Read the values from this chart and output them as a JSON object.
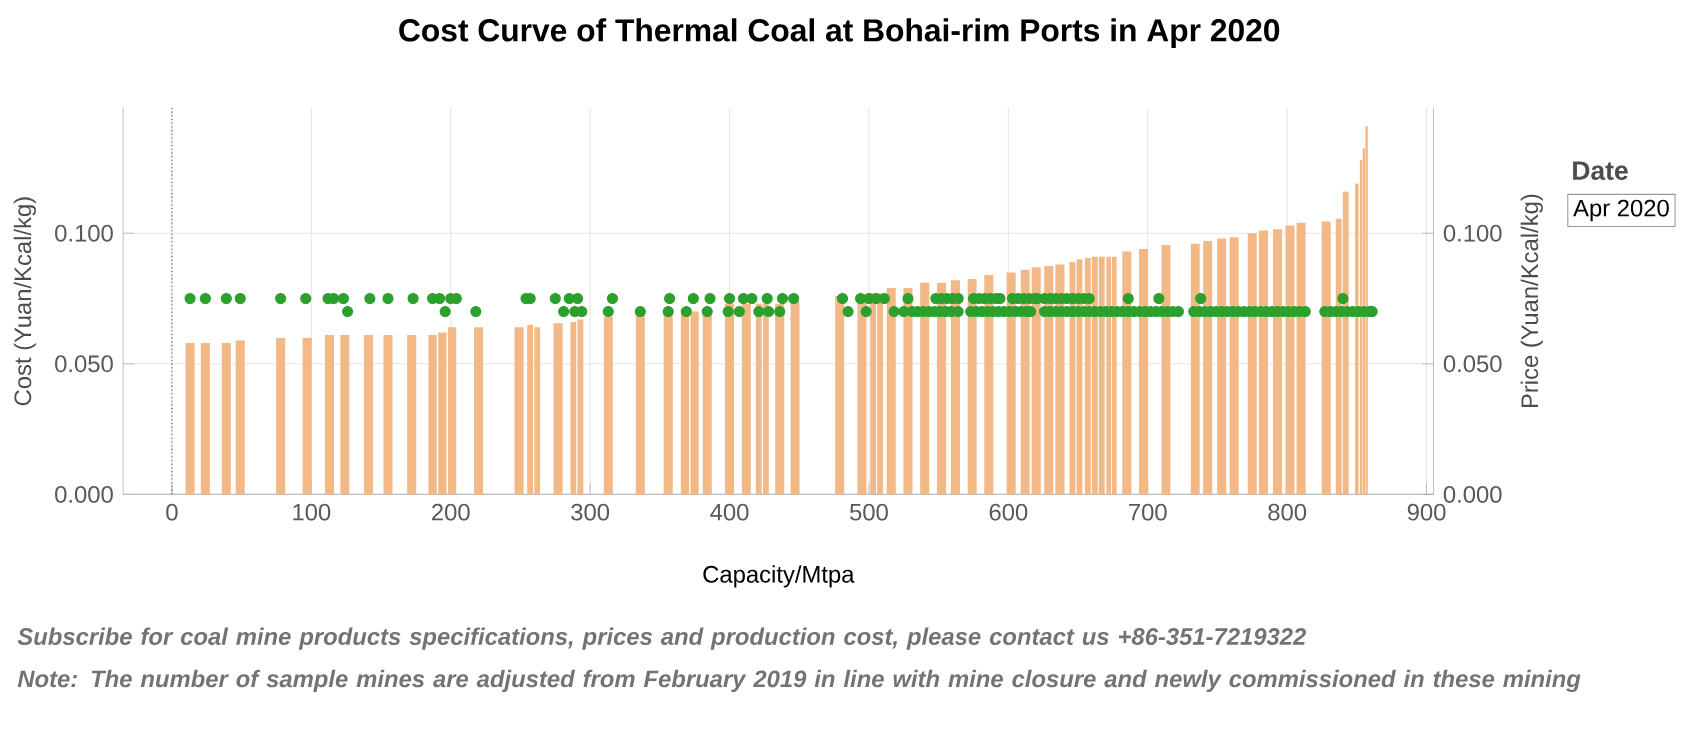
{
  "chart_data": {
    "type": "bar",
    "title": "Cost Curve of Thermal Coal at Bohai-rim Ports in Apr 2020",
    "xlabel": "Capacity/Mtpa",
    "ylabel": "Cost (Yuan/Kcal/kg)",
    "y2label": "Price (Yuan/Kcal/kg)",
    "xlim": [
      -35,
      905
    ],
    "xticks": [
      0,
      100,
      200,
      300,
      400,
      500,
      600,
      700,
      800,
      900
    ],
    "ylim": [
      0,
      0.148
    ],
    "yticks": [
      {
        "value": 0,
        "label": "0.000"
      },
      {
        "value": 0.05,
        "label": "0.050"
      },
      {
        "value": 0.1,
        "label": "0.100"
      }
    ],
    "y2lim": [
      0,
      0.148
    ],
    "y2ticks": [
      {
        "value": 0,
        "label": "0.000"
      },
      {
        "value": 0.05,
        "label": "0.050"
      },
      {
        "value": 0.1,
        "label": "0.100"
      }
    ],
    "grid": true,
    "ref_lines": [
      {
        "axis": "x",
        "value": 0,
        "line_style": "dotted",
        "color": "#333333"
      }
    ],
    "series": [
      {
        "color": "#f2b886",
        "x": [
          13,
          24,
          39,
          49,
          78,
          97,
          113,
          124,
          141,
          155,
          172,
          187,
          194,
          201,
          220,
          249,
          257,
          262,
          277,
          288,
          293,
          313,
          336,
          356,
          368,
          375,
          384,
          400,
          412,
          421,
          426,
          436,
          447,
          479,
          495,
          503,
          508,
          516,
          528,
          540,
          552,
          562,
          574,
          586,
          602,
          612,
          620,
          629,
          637,
          646,
          651,
          657,
          662,
          667,
          672,
          676,
          685,
          697,
          713,
          734,
          743,
          753,
          762,
          775,
          783,
          793,
          802,
          810,
          828,
          837,
          842,
          850,
          853,
          855,
          857
        ],
        "values": [
          0.058,
          0.058,
          0.058,
          0.059,
          0.06,
          0.06,
          0.061,
          0.061,
          0.061,
          0.061,
          0.061,
          0.061,
          0.062,
          0.064,
          0.064,
          0.064,
          0.065,
          0.064,
          0.0655,
          0.066,
          0.067,
          0.068,
          0.069,
          0.069,
          0.07,
          0.07,
          0.071,
          0.073,
          0.073,
          0.073,
          0.073,
          0.073,
          0.074,
          0.076,
          0.076,
          0.077,
          0.077,
          0.079,
          0.079,
          0.081,
          0.081,
          0.082,
          0.0825,
          0.084,
          0.085,
          0.086,
          0.087,
          0.0875,
          0.088,
          0.089,
          0.09,
          0.0905,
          0.091,
          0.091,
          0.091,
          0.091,
          0.093,
          0.094,
          0.0955,
          0.096,
          0.097,
          0.098,
          0.0985,
          0.1,
          0.101,
          0.1015,
          0.103,
          0.104,
          0.1045,
          0.1055,
          0.116,
          0.119,
          0.128,
          0.1325,
          0.141
        ]
      },
      {
        "type": "scatter",
        "axis": "y2",
        "color": "#2ca02c",
        "marker": "circle",
        "x": [
          13,
          24,
          39,
          49,
          78,
          96,
          112,
          116,
          123,
          142,
          155,
          173,
          187,
          192,
          200,
          204,
          254,
          257,
          275,
          285,
          291,
          316,
          357,
          374,
          386,
          400,
          410,
          416,
          427,
          438,
          446,
          481,
          494,
          500,
          505,
          511,
          528,
          548,
          552,
          556,
          560,
          564,
          575,
          579,
          583,
          587,
          591,
          594,
          603,
          607,
          611,
          615,
          619,
          621,
          626,
          630,
          634,
          638,
          642,
          646,
          650,
          654,
          658,
          686,
          708,
          738,
          840,
          126,
          196,
          218,
          281,
          289,
          294,
          313,
          336,
          356,
          369,
          384,
          399,
          407,
          421,
          428,
          436,
          485,
          498,
          518,
          525,
          531,
          535,
          539,
          543,
          547,
          551,
          555,
          559,
          564,
          573,
          577,
          581,
          585,
          589,
          593,
          597,
          601,
          605,
          609,
          613,
          616,
          626,
          630,
          634,
          638,
          642,
          646,
          650,
          654,
          658,
          662,
          666,
          670,
          674,
          678,
          682,
          686,
          690,
          694,
          698,
          702,
          706,
          710,
          714,
          718,
          722,
          733,
          737,
          741,
          745,
          749,
          753,
          757,
          761,
          765,
          769,
          773,
          777,
          781,
          785,
          789,
          793,
          797,
          801,
          805,
          809,
          813,
          827,
          831,
          835,
          839,
          843,
          847,
          851,
          855,
          859,
          861
        ],
        "values": [
          0.075,
          0.075,
          0.075,
          0.075,
          0.075,
          0.075,
          0.075,
          0.075,
          0.075,
          0.075,
          0.075,
          0.075,
          0.075,
          0.075,
          0.075,
          0.075,
          0.075,
          0.075,
          0.075,
          0.075,
          0.075,
          0.075,
          0.075,
          0.075,
          0.075,
          0.075,
          0.075,
          0.075,
          0.075,
          0.075,
          0.075,
          0.075,
          0.075,
          0.075,
          0.075,
          0.075,
          0.075,
          0.075,
          0.075,
          0.075,
          0.075,
          0.075,
          0.075,
          0.075,
          0.075,
          0.075,
          0.075,
          0.075,
          0.075,
          0.075,
          0.075,
          0.075,
          0.075,
          0.075,
          0.075,
          0.075,
          0.075,
          0.075,
          0.075,
          0.075,
          0.075,
          0.075,
          0.075,
          0.075,
          0.075,
          0.075,
          0.075,
          0.07,
          0.07,
          0.07,
          0.07,
          0.07,
          0.07,
          0.07,
          0.07,
          0.07,
          0.07,
          0.07,
          0.07,
          0.07,
          0.07,
          0.07,
          0.07,
          0.07,
          0.07,
          0.07,
          0.07,
          0.07,
          0.07,
          0.07,
          0.07,
          0.07,
          0.07,
          0.07,
          0.07,
          0.07,
          0.07,
          0.07,
          0.07,
          0.07,
          0.07,
          0.07,
          0.07,
          0.07,
          0.07,
          0.07,
          0.07,
          0.07,
          0.07,
          0.07,
          0.07,
          0.07,
          0.07,
          0.07,
          0.07,
          0.07,
          0.07,
          0.07,
          0.07,
          0.07,
          0.07,
          0.07,
          0.07,
          0.07,
          0.07,
          0.07,
          0.07,
          0.07,
          0.07,
          0.07,
          0.07,
          0.07,
          0.07,
          0.07,
          0.07,
          0.07,
          0.07,
          0.07,
          0.07,
          0.07,
          0.07,
          0.07,
          0.07,
          0.07,
          0.07,
          0.07,
          0.07,
          0.07,
          0.07,
          0.07,
          0.07,
          0.07,
          0.07,
          0.07,
          0.07,
          0.07,
          0.07,
          0.07,
          0.07,
          0.07,
          0.07,
          0.07,
          0.07,
          0.07
        ]
      }
    ],
    "annotations": [
      "Subscribe for coal mine products specifications, prices and production cost, please contact us  +86-351-7219322",
      "Note: The number of sample mines are adjusted from February 2019 in line with mine closure and newly commissioned in these mining",
      "Date",
      "Apr 2020"
    ]
  }
}
